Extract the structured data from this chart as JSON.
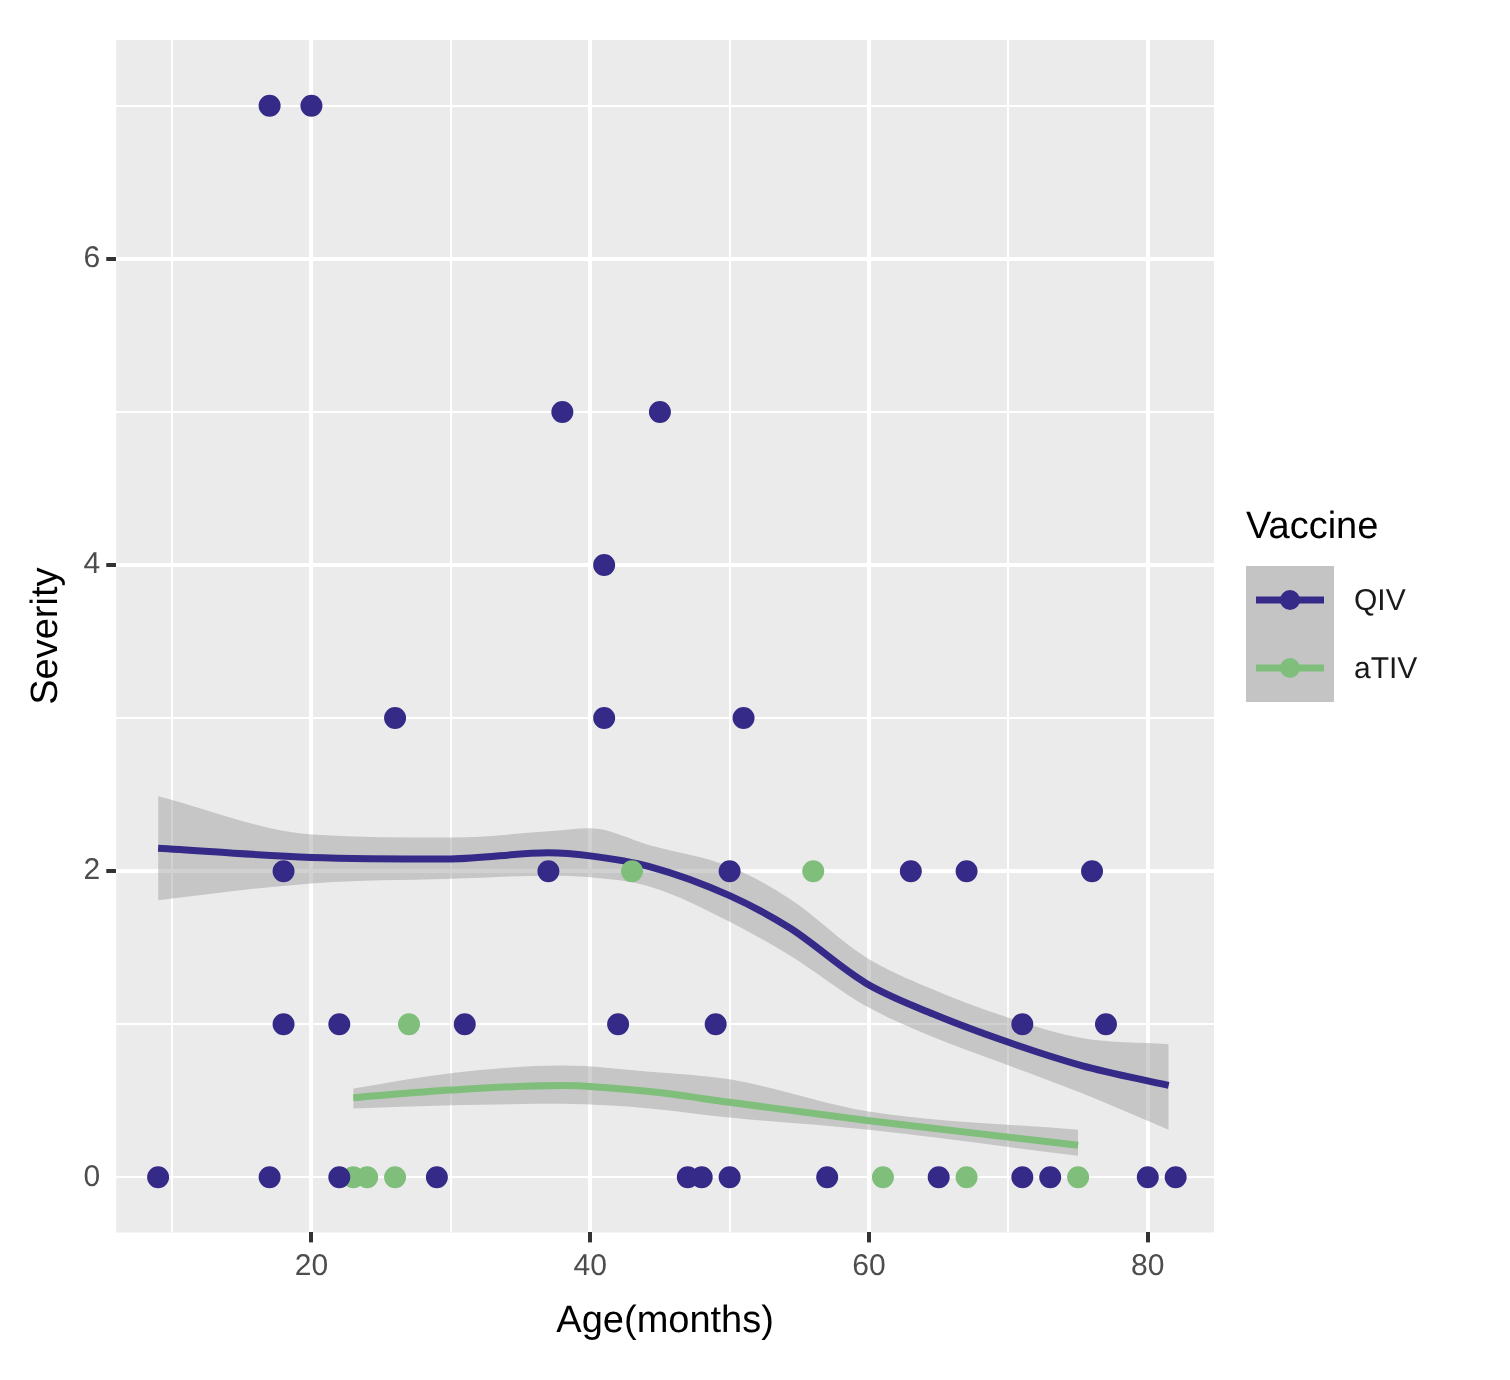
{
  "chart_data": {
    "type": "scatter",
    "xlabel": "Age(months)",
    "ylabel": "Severity",
    "legend_title": "Vaccine",
    "legend": "right",
    "grid": true,
    "marker": "circle",
    "line_style": "solid",
    "xlim": [
      6,
      84.75
    ],
    "ylim": [
      -0.36,
      7.43
    ],
    "xticks": [
      {
        "value": 10,
        "label": null
      },
      20,
      {
        "value": 30,
        "label": null
      },
      40,
      {
        "value": 50,
        "label": null
      },
      60,
      {
        "value": 70,
        "label": null
      },
      80
    ],
    "yticks": [
      {
        "value": 1,
        "label": null
      },
      0,
      2,
      {
        "value": 3,
        "label": null
      },
      4,
      {
        "value": 5,
        "label": null
      },
      6,
      {
        "value": 7,
        "label": null
      }
    ],
    "series": [
      {
        "name": "QIV",
        "color": "#352a87",
        "x": [
          9,
          17,
          22,
          29,
          47,
          48,
          50,
          57,
          65,
          71,
          73,
          80,
          82,
          18,
          22,
          31,
          42,
          49,
          71,
          77,
          18,
          37,
          50,
          63,
          67,
          76,
          26,
          41,
          51,
          41,
          38,
          45,
          17,
          20
        ],
        "values": [
          0,
          0,
          0,
          0,
          0,
          0,
          0,
          0,
          0,
          0,
          0,
          0,
          0,
          1,
          1,
          1,
          1,
          1,
          1,
          1,
          2,
          2,
          2,
          2,
          2,
          2,
          3,
          3,
          3,
          4,
          5,
          5,
          7,
          7
        ]
      },
      {
        "name": "aTIV",
        "color": "#7fbf7b",
        "x": [
          23,
          24,
          26,
          61,
          67,
          75,
          27,
          43,
          56
        ],
        "values": [
          0,
          0,
          0,
          0,
          0,
          0,
          1,
          2,
          2
        ]
      },
      {
        "type": "line",
        "marker": "none",
        "color": "#352a87",
        "x": [
          9,
          20,
          30,
          37,
          40,
          44.25,
          50,
          54.3,
          59.75,
          64.25,
          69.75,
          75.25,
          81.5
        ],
        "values": [
          2.15,
          2.09,
          2.08,
          2.12,
          2.1,
          2.03,
          1.84,
          1.63,
          1.27,
          1.08,
          0.89,
          0.73,
          0.6
        ],
        "lower": [
          1.81,
          1.92,
          1.95,
          1.97,
          1.96,
          1.9,
          1.67,
          1.45,
          1.12,
          0.93,
          0.74,
          0.55,
          0.31
        ],
        "upper": [
          2.49,
          2.24,
          2.22,
          2.26,
          2.28,
          2.17,
          2.03,
          1.82,
          1.44,
          1.24,
          1.05,
          0.91,
          0.87
        ]
      },
      {
        "type": "line",
        "marker": "none",
        "color": "#7fbf7b",
        "x": [
          23,
          30,
          38,
          44.25,
          50,
          60,
          75
        ],
        "values": [
          0.52,
          0.57,
          0.6,
          0.56,
          0.49,
          0.37,
          0.21
        ],
        "lower": [
          0.45,
          0.47,
          0.48,
          0.45,
          0.39,
          0.31,
          0.14
        ],
        "upper": [
          0.58,
          0.68,
          0.73,
          0.69,
          0.64,
          0.43,
          0.31
        ]
      }
    ]
  }
}
